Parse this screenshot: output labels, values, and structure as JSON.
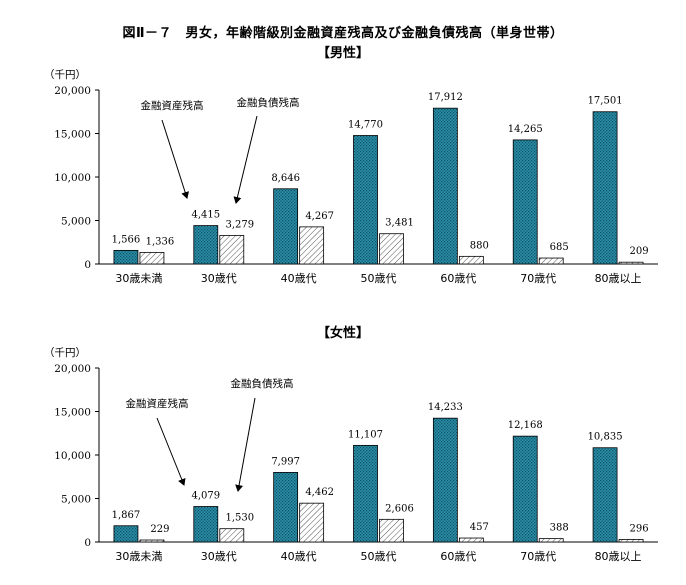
{
  "title": "図Ⅱ－７　男女，年齢階級別金融資産残高及び金融負債残高（単身世帯）",
  "colors": {
    "asset": "#2b8fa8",
    "asset_dark": "#0d4f63",
    "liability": "#ffffff",
    "line": "#000000"
  },
  "chart_data": [
    {
      "type": "bar",
      "title": "【男性】",
      "unit_label": "（千円）",
      "categories": [
        "30歳未満",
        "30歳代",
        "40歳代",
        "50歳代",
        "60歳代",
        "70歳代",
        "80歳以上"
      ],
      "series": [
        {
          "name": "金融資産残高",
          "values": [
            1566,
            4415,
            8646,
            14770,
            17912,
            14265,
            17501
          ],
          "labels": [
            "1,566",
            "4,415",
            "8,646",
            "14,770",
            "17,912",
            "14,265",
            "17,501"
          ]
        },
        {
          "name": "金融負債残高",
          "values": [
            1336,
            3279,
            4267,
            3481,
            880,
            685,
            209
          ],
          "labels": [
            "1,336",
            "3,279",
            "4,267",
            "3,481",
            "880",
            "685",
            "209"
          ]
        }
      ],
      "ylim": [
        0,
        20000
      ],
      "yticks": [
        0,
        5000,
        10000,
        15000,
        20000
      ],
      "ytick_labels": [
        "0",
        "5,000",
        "10,000",
        "15,000",
        "20,000"
      ],
      "grid": false,
      "legend": "annotation-arrows"
    },
    {
      "type": "bar",
      "title": "【女性】",
      "unit_label": "（千円）",
      "categories": [
        "30歳未満",
        "30歳代",
        "40歳代",
        "50歳代",
        "60歳代",
        "70歳代",
        "80歳以上"
      ],
      "series": [
        {
          "name": "金融資産残高",
          "values": [
            1867,
            4079,
            7997,
            11107,
            14233,
            12168,
            10835
          ],
          "labels": [
            "1,867",
            "4,079",
            "7,997",
            "11,107",
            "14,233",
            "12,168",
            "10,835"
          ]
        },
        {
          "name": "金融負債残高",
          "values": [
            229,
            1530,
            4462,
            2606,
            457,
            388,
            296
          ],
          "labels": [
            "229",
            "1,530",
            "4,462",
            "2,606",
            "457",
            "388",
            "296"
          ]
        }
      ],
      "ylim": [
        0,
        20000
      ],
      "yticks": [
        0,
        5000,
        10000,
        15000,
        20000
      ],
      "ytick_labels": [
        "0",
        "5,000",
        "10,000",
        "15,000",
        "20,000"
      ],
      "grid": false,
      "legend": "annotation-arrows"
    }
  ]
}
